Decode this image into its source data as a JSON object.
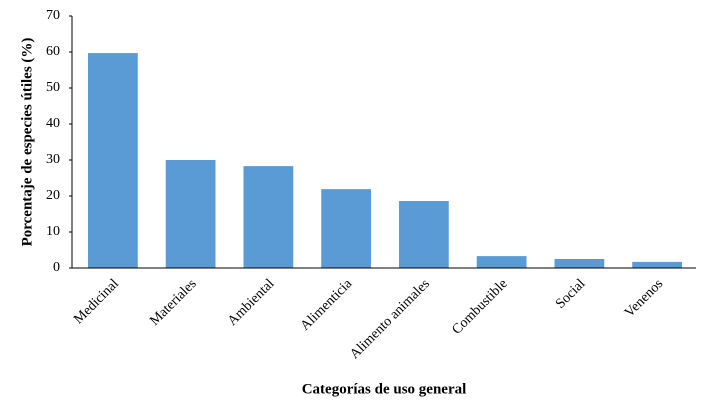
{
  "chart_data": {
    "type": "bar",
    "x_label": "Categorías de uso general",
    "y_label": "Porcentaje de especies útiles (%)",
    "categories": [
      "Medicinal",
      "Materiales",
      "Ambiental",
      "Alimenticia",
      "Alimento animales",
      "Combustible",
      "Social",
      "Venenos"
    ],
    "values": [
      59.7,
      30,
      28.3,
      21.9,
      18.6,
      3.3,
      2.5,
      1.7
    ],
    "color": "#5b9bd5",
    "ylim": [
      0,
      70
    ],
    "yticks": [
      0,
      10,
      20,
      30,
      40,
      50,
      60,
      70
    ],
    "grid": false
  }
}
